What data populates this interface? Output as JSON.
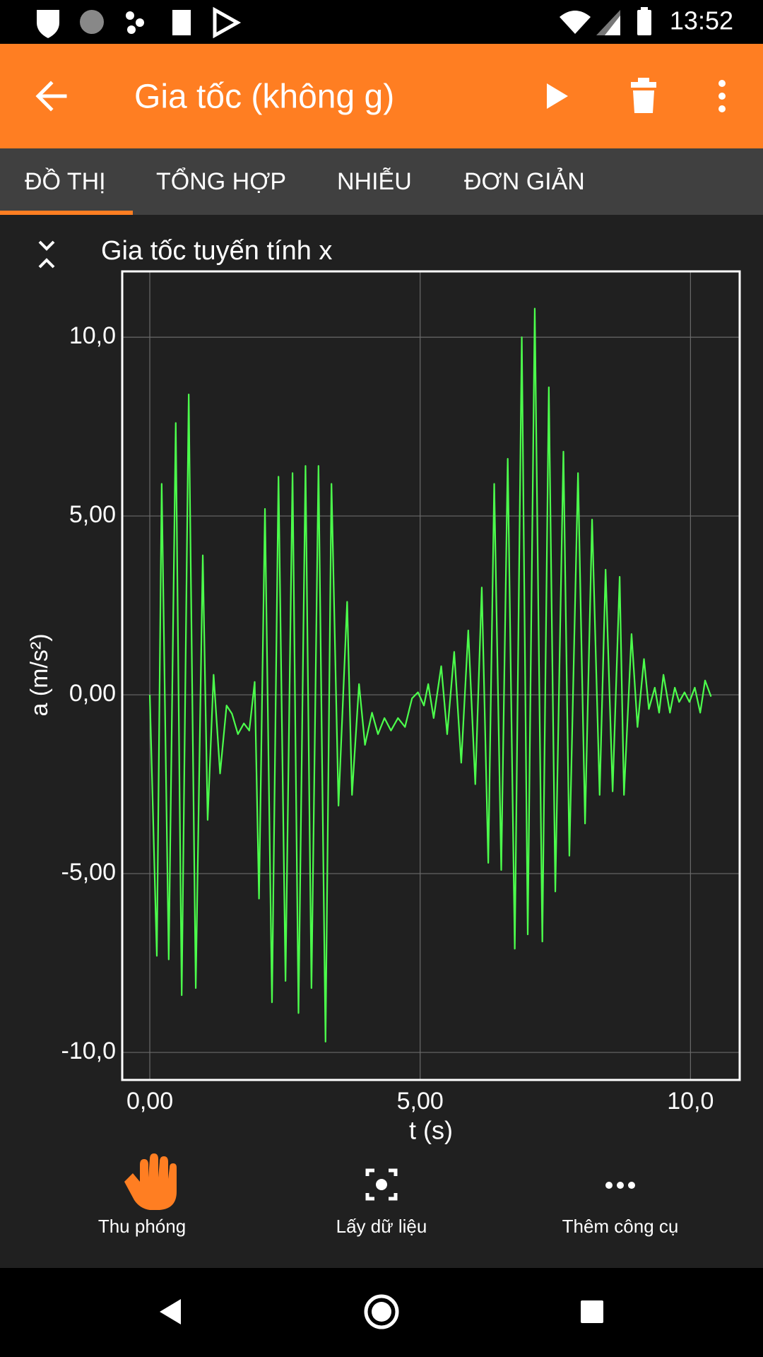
{
  "status_bar": {
    "time": "13:52"
  },
  "app_bar": {
    "title": "Gia tốc (không g)"
  },
  "tabs": [
    "ĐỒ THỊ",
    "TỔNG HỢP",
    "NHIỄU",
    "ĐƠN GIẢN"
  ],
  "chart_data": {
    "type": "line",
    "title": "Gia tốc tuyến tính x",
    "x_label": "t (s)",
    "y_label": "a (m/s²)",
    "color": "#4cff4c",
    "grid": true,
    "xlim": [
      -0.51,
      10.91
    ],
    "ylim": [
      -10.77,
      11.84
    ],
    "xticks": [
      {
        "value": 0,
        "label": "0,00"
      },
      {
        "value": 5,
        "label": "5,00"
      },
      {
        "value": 10,
        "label": "10,0"
      }
    ],
    "yticks": [
      {
        "value": -10,
        "label": "-10,0"
      },
      {
        "value": -5,
        "label": "-5,00"
      },
      {
        "value": 0,
        "label": "0,00"
      },
      {
        "value": 5,
        "label": "5,00"
      },
      {
        "value": 10,
        "label": "10,0"
      }
    ],
    "x": [
      0,
      0.13,
      0.22,
      0.35,
      0.48,
      0.59,
      0.72,
      0.85,
      0.98,
      1.07,
      1.18,
      1.3,
      1.42,
      1.52,
      1.63,
      1.74,
      1.84,
      1.94,
      2.02,
      2.13,
      2.26,
      2.38,
      2.51,
      2.64,
      2.75,
      2.88,
      2.99,
      3.12,
      3.25,
      3.36,
      3.49,
      3.65,
      3.74,
      3.87,
      3.98,
      4.11,
      4.22,
      4.34,
      4.46,
      4.59,
      4.72,
      4.85,
      4.96,
      5.07,
      5.15,
      5.25,
      5.39,
      5.5,
      5.63,
      5.76,
      5.89,
      6.02,
      6.14,
      6.26,
      6.37,
      6.5,
      6.62,
      6.75,
      6.88,
      6.99,
      7.12,
      7.26,
      7.38,
      7.5,
      7.65,
      7.76,
      7.92,
      8.05,
      8.18,
      8.32,
      8.43,
      8.56,
      8.69,
      8.77,
      8.91,
      9.02,
      9.14,
      9.23,
      9.34,
      9.42,
      9.5,
      9.62,
      9.71,
      9.79,
      9.89,
      9.98,
      10.08,
      10.18,
      10.27,
      10.38
    ],
    "values": [
      0,
      -7.3,
      5.9,
      -7.4,
      7.6,
      -8.4,
      8.4,
      -8.2,
      3.9,
      -3.5,
      0.56,
      -2.2,
      -0.3,
      -0.53,
      -1.1,
      -0.8,
      -1.0,
      0.36,
      -5.7,
      5.2,
      -8.6,
      6.1,
      -8.0,
      6.2,
      -8.9,
      6.4,
      -8.2,
      6.4,
      -9.7,
      5.9,
      -3.1,
      2.6,
      -2.8,
      0.3,
      -1.4,
      -0.5,
      -1.1,
      -0.65,
      -1.0,
      -0.65,
      -0.9,
      -0.1,
      0.07,
      -0.3,
      0.3,
      -0.65,
      0.8,
      -1.1,
      1.2,
      -1.9,
      1.8,
      -2.5,
      3.0,
      -4.7,
      5.9,
      -4.9,
      6.6,
      -7.1,
      10.0,
      -6.7,
      10.8,
      -6.9,
      8.6,
      -5.5,
      6.8,
      -4.5,
      6.2,
      -3.6,
      4.9,
      -2.8,
      3.5,
      -2.7,
      3.3,
      -2.8,
      1.7,
      -0.9,
      1.0,
      -0.4,
      0.2,
      -0.5,
      0.56,
      -0.5,
      0.2,
      -0.2,
      0.07,
      -0.2,
      0.2,
      -0.5,
      0.4,
      -0.05
    ]
  },
  "toolbar": {
    "items": [
      "Thu phóng",
      "Lấy dữ liệu",
      "Thêm công cụ"
    ]
  }
}
